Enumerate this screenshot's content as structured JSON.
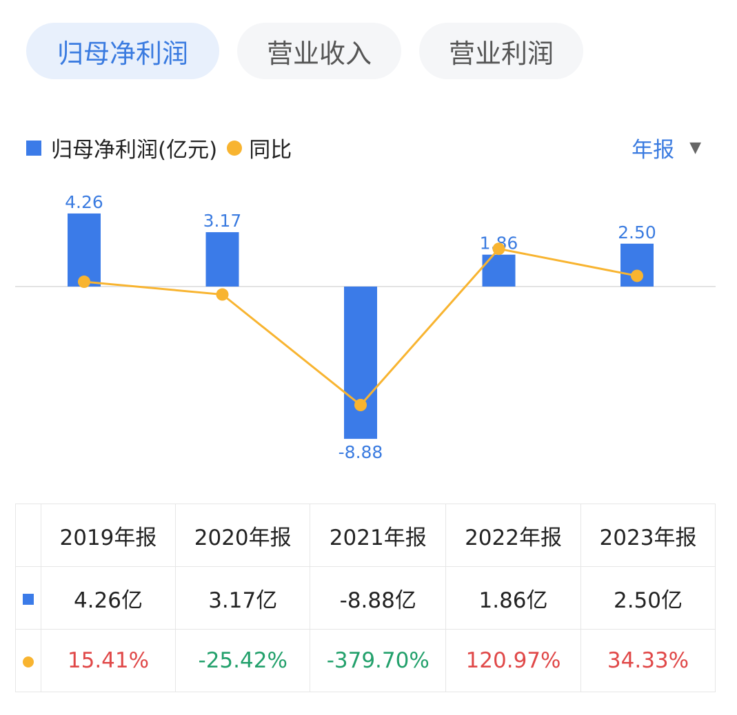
{
  "tabs": [
    {
      "label": "归母净利润",
      "active": true
    },
    {
      "label": "营业收入",
      "active": false
    },
    {
      "label": "营业利润",
      "active": false
    }
  ],
  "legend": {
    "bar": "归母净利润(亿元)",
    "line": "同比"
  },
  "period": {
    "label": "年报",
    "icon": "triangle-down-icon"
  },
  "colors": {
    "bar": "#3b7be8",
    "line": "#f8b430",
    "positive": "#e04848",
    "negative": "#22a06b",
    "accent": "#3a7be0"
  },
  "chart_data": {
    "type": "bar+line",
    "categories": [
      "2019年报",
      "2020年报",
      "2021年报",
      "2022年报",
      "2023年报"
    ],
    "series": [
      {
        "name": "归母净利润(亿元)",
        "type": "bar",
        "values": [
          4.26,
          3.17,
          -8.88,
          1.86,
          2.5
        ],
        "labels": [
          "4.26",
          "3.17",
          "-8.88",
          "1.86",
          "2.50"
        ]
      },
      {
        "name": "同比",
        "type": "line",
        "values": [
          15.41,
          -25.42,
          -379.7,
          120.97,
          34.33
        ]
      }
    ]
  },
  "table": {
    "headers": [
      "2019年报",
      "2020年报",
      "2021年报",
      "2022年报",
      "2023年报"
    ],
    "values": [
      "4.26亿",
      "3.17亿",
      "-8.88亿",
      "1.86亿",
      "2.50亿"
    ],
    "yoy": [
      "15.41%",
      "-25.42%",
      "-379.70%",
      "120.97%",
      "34.33%"
    ]
  }
}
